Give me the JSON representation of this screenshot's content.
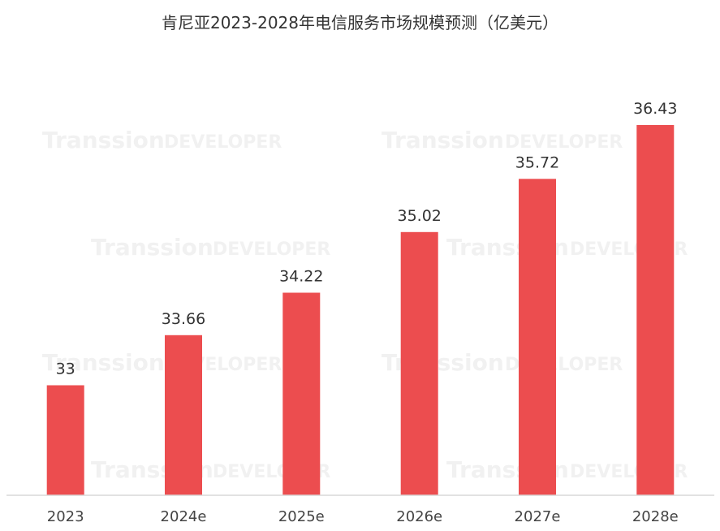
{
  "watermark": {
    "brand": "Transsion",
    "suffix": "DEVELOPER"
  },
  "colors": {
    "bar": "#ec4d4f",
    "axis": "#d9d9d9",
    "text": "#333333",
    "watermark": "#f1f1f1"
  },
  "chart_data": {
    "type": "bar",
    "title": "肯尼亚2023-2028年电信服务市场规模预测（亿美元）",
    "categories": [
      "2023",
      "2024e",
      "2025e",
      "2026e",
      "2027e",
      "2028e"
    ],
    "values": [
      33,
      33.66,
      34.22,
      35.02,
      35.72,
      36.43
    ],
    "value_labels": [
      "33",
      "33.66",
      "34.22",
      "35.02",
      "35.72",
      "36.43"
    ],
    "xlabel": "",
    "ylabel": "",
    "ylim": [
      31.55,
      36.8
    ],
    "grid": false,
    "legend": "none"
  }
}
